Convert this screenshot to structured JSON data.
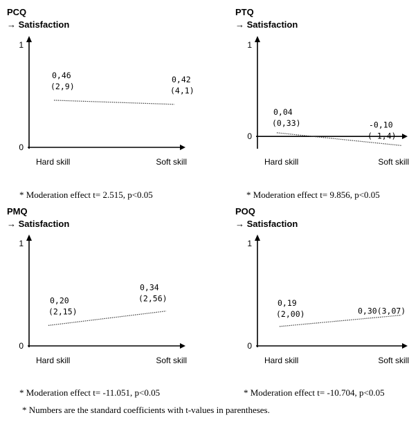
{
  "chart_data": [
    {
      "type": "line",
      "panel": "PCQ",
      "title": "PCQ",
      "subtitle": "→ Satisfaction",
      "categories": [
        "Hard skill",
        "Soft skill"
      ],
      "ytick_labels": [
        "0",
        "1"
      ],
      "ylim": [
        0,
        1
      ],
      "series": [
        {
          "values": [
            0.46,
            0.42
          ]
        }
      ],
      "data_labels": [
        {
          "coef": "0,46",
          "t": "(2,9)"
        },
        {
          "coef": "0,42",
          "t": "(4,1)"
        }
      ],
      "annotation": "* Moderation effect t= 2.515, p<0.05"
    },
    {
      "type": "line",
      "panel": "PTQ",
      "title": "PTQ",
      "subtitle": "→ Satisfaction",
      "categories": [
        "Hard skill",
        "Soft skill"
      ],
      "ytick_labels": [
        "0",
        "1"
      ],
      "ylim": [
        -0.12,
        1
      ],
      "series": [
        {
          "values": [
            0.04,
            -0.1
          ]
        }
      ],
      "data_labels": [
        {
          "coef": "0,04",
          "t": "(0,33)"
        },
        {
          "coef": "-0,10",
          "t": "(-1,4)"
        }
      ],
      "annotation": "* Moderation effect t= 9.856, p<0.05"
    },
    {
      "type": "line",
      "panel": "PMQ",
      "title": "PMQ",
      "subtitle": "→ Satisfaction",
      "categories": [
        "Hard skill",
        "Soft skill"
      ],
      "ytick_labels": [
        "0",
        "1"
      ],
      "ylim": [
        0,
        1
      ],
      "series": [
        {
          "values": [
            0.2,
            0.34
          ]
        }
      ],
      "data_labels": [
        {
          "coef": "0,20",
          "t": "(2,15)"
        },
        {
          "coef": "0,34",
          "t": "(2,56)"
        }
      ],
      "annotation": "* Moderation effect t= -11.051, p<0.05"
    },
    {
      "type": "line",
      "panel": "POQ",
      "title": "POQ",
      "subtitle": "→ Satisfaction",
      "categories": [
        "Hard skill",
        "Soft skill"
      ],
      "ytick_labels": [
        "0",
        "1"
      ],
      "ylim": [
        0,
        1
      ],
      "series": [
        {
          "values": [
            0.19,
            0.3
          ]
        }
      ],
      "data_labels": [
        {
          "coef": "0,19",
          "t": "(2,00)"
        },
        {
          "coef": "0,30(3,07)",
          "t": ""
        }
      ],
      "annotation": "* Moderation effect t= -10.704, p<0.05"
    }
  ],
  "footnote": "* Numbers are the standard coefficients with t-values in parentheses."
}
